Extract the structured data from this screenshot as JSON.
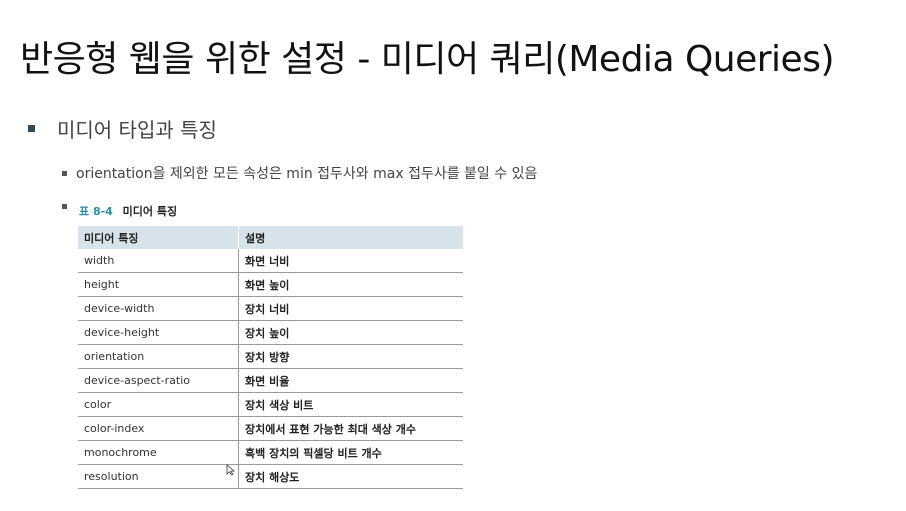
{
  "slide": {
    "title": "반응형 웹을 위한 설정 - 미디어 쿼리(Media Queries)",
    "bullet_1": "미디어 타입과 특징",
    "bullet_2": "orientation을 제외한 모든 속성은 min 접두사와 max 접두사를 붙일 수 있음"
  },
  "table": {
    "caption_num": "표 8-4",
    "caption_name": "미디어 특징",
    "headers": [
      "미디어 특징",
      "설명"
    ],
    "rows": [
      [
        "width",
        "화면 너비"
      ],
      [
        "height",
        "화면 높이"
      ],
      [
        "device-width",
        "장치 너비"
      ],
      [
        "device-height",
        "장치 높이"
      ],
      [
        "orientation",
        "장치 방향"
      ],
      [
        "device-aspect-ratio",
        "화면 비율"
      ],
      [
        "color",
        "장치 색상 비트"
      ],
      [
        "color-index",
        "장치에서 표현 가능한 최대 색상 개수"
      ],
      [
        "monochrome",
        "흑백 장치의 픽셀당 비트 개수"
      ],
      [
        "resolution",
        "장치 해상도"
      ]
    ]
  },
  "colors": {
    "header_bg": "#d6e3ea",
    "caption_accent": "#2b8fa3",
    "bullet_main": "#2f4a58"
  }
}
